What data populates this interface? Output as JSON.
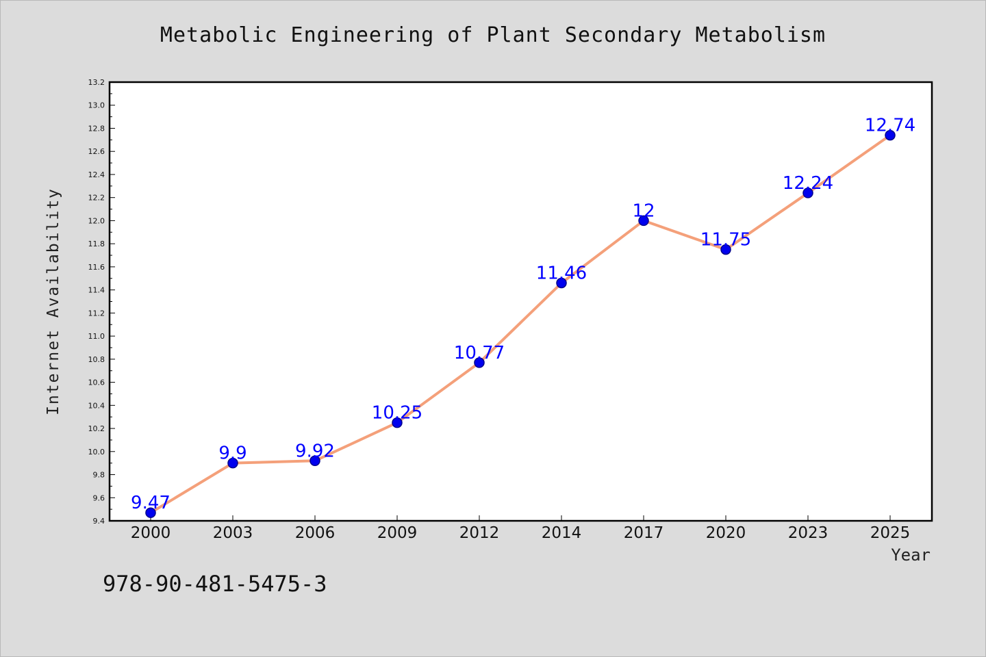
{
  "title": "Metabolic Engineering of Plant Secondary Metabolism",
  "footer_text": "978-90-481-5475-3",
  "chart_data": {
    "type": "line",
    "title": "Metabolic Engineering of Plant Secondary Metabolism",
    "xlabel": "Year",
    "ylabel": "Internet Availability",
    "categories": [
      "2000",
      "2003",
      "2006",
      "2009",
      "2012",
      "2014",
      "2017",
      "2020",
      "2023",
      "2025"
    ],
    "series": [
      {
        "values": [
          9.47,
          9.9,
          9.92,
          10.25,
          10.77,
          11.46,
          12,
          11.75,
          12.24,
          12.74
        ],
        "data_labels": [
          "9.47",
          "9.9",
          "9.92",
          "10.25",
          "10.77",
          "11.46",
          "12",
          "11.75",
          "12.24",
          "12.74"
        ]
      }
    ],
    "ylim": [
      9.4,
      13.2
    ],
    "yticks": [
      "9.4",
      "9.6",
      "9.8",
      "10.0",
      "10.2",
      "10.4",
      "10.6",
      "10.8",
      "11.0",
      "11.2",
      "11.4",
      "11.6",
      "11.8",
      "12.0",
      "12.2",
      "12.4",
      "12.6",
      "12.8",
      "13.0",
      "13.2"
    ],
    "grid": false,
    "colors": {
      "line": "#f4a07a",
      "marker_fill": "#0000ee",
      "marker_stroke": "#00008b",
      "data_label": "#0000ff",
      "plot_bg": "#ffffff",
      "page_bg": "#dcdcdc"
    }
  }
}
